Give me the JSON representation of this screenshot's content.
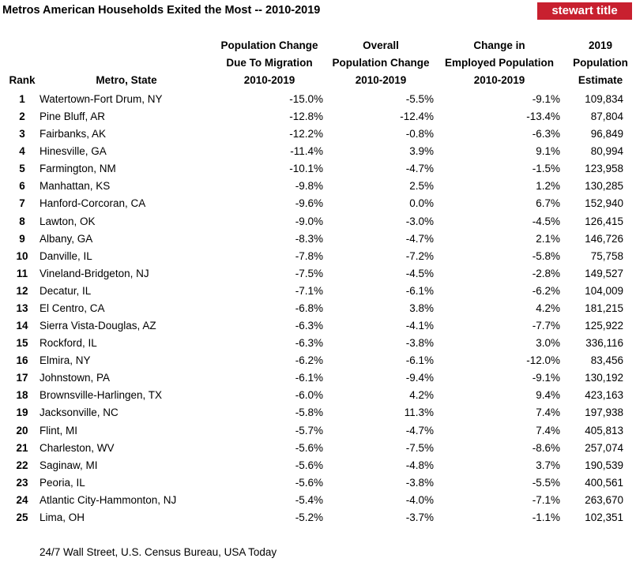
{
  "header": {
    "title": "Metros American Households Exited the Most -- 2010-2019",
    "logo": "stewart title"
  },
  "table": {
    "columns": [
      [
        "Rank"
      ],
      [
        "Metro, State"
      ],
      [
        "Population Change",
        "Due To Migration",
        "2010-2019"
      ],
      [
        "Overall",
        "Population Change",
        "2010-2019"
      ],
      [
        "Change in",
        "Employed Population",
        "2010-2019"
      ],
      [
        "2019",
        "Population",
        "Estimate"
      ]
    ],
    "rows": [
      [
        "1",
        "Watertown-Fort Drum, NY",
        "-15.0%",
        "-5.5%",
        "-9.1%",
        "109,834"
      ],
      [
        "2",
        "Pine Bluff, AR",
        "-12.8%",
        "-12.4%",
        "-13.4%",
        "87,804"
      ],
      [
        "3",
        "Fairbanks, AK",
        "-12.2%",
        "-0.8%",
        "-6.3%",
        "96,849"
      ],
      [
        "4",
        "Hinesville, GA",
        "-11.4%",
        "3.9%",
        "9.1%",
        "80,994"
      ],
      [
        "5",
        "Farmington, NM",
        "-10.1%",
        "-4.7%",
        "-1.5%",
        "123,958"
      ],
      [
        "6",
        "Manhattan, KS",
        "-9.8%",
        "2.5%",
        "1.2%",
        "130,285"
      ],
      [
        "7",
        "Hanford-Corcoran, CA",
        "-9.6%",
        "0.0%",
        "6.7%",
        "152,940"
      ],
      [
        "8",
        "Lawton, OK",
        "-9.0%",
        "-3.0%",
        "-4.5%",
        "126,415"
      ],
      [
        "9",
        "Albany, GA",
        "-8.3%",
        "-4.7%",
        "2.1%",
        "146,726"
      ],
      [
        "10",
        "Danville, IL",
        "-7.8%",
        "-7.2%",
        "-5.8%",
        "75,758"
      ],
      [
        "11",
        "Vineland-Bridgeton, NJ",
        "-7.5%",
        "-4.5%",
        "-2.8%",
        "149,527"
      ],
      [
        "12",
        "Decatur, IL",
        "-7.1%",
        "-6.1%",
        "-6.2%",
        "104,009"
      ],
      [
        "13",
        "El Centro, CA",
        "-6.8%",
        "3.8%",
        "4.2%",
        "181,215"
      ],
      [
        "14",
        "Sierra Vista-Douglas, AZ",
        "-6.3%",
        "-4.1%",
        "-7.7%",
        "125,922"
      ],
      [
        "15",
        "Rockford, IL",
        "-6.3%",
        "-3.8%",
        "3.0%",
        "336,116"
      ],
      [
        "16",
        "Elmira, NY",
        "-6.2%",
        "-6.1%",
        "-12.0%",
        "83,456"
      ],
      [
        "17",
        "Johnstown, PA",
        "-6.1%",
        "-9.4%",
        "-9.1%",
        "130,192"
      ],
      [
        "18",
        "Brownsville-Harlingen, TX",
        "-6.0%",
        "4.2%",
        "9.4%",
        "423,163"
      ],
      [
        "19",
        "Jacksonville, NC",
        "-5.8%",
        "11.3%",
        "7.4%",
        "197,938"
      ],
      [
        "20",
        "Flint, MI",
        "-5.7%",
        "-4.7%",
        "7.4%",
        "405,813"
      ],
      [
        "21",
        "Charleston, WV",
        "-5.6%",
        "-7.5%",
        "-8.6%",
        "257,074"
      ],
      [
        "22",
        "Saginaw, MI",
        "-5.6%",
        "-4.8%",
        "3.7%",
        "190,539"
      ],
      [
        "23",
        "Peoria, IL",
        "-5.6%",
        "-3.8%",
        "-5.5%",
        "400,561"
      ],
      [
        "24",
        "Atlantic City-Hammonton, NJ",
        "-5.4%",
        "-4.0%",
        "-7.1%",
        "263,670"
      ],
      [
        "25",
        "Lima, OH",
        "-5.2%",
        "-3.7%",
        "-1.1%",
        "102,351"
      ]
    ]
  },
  "source": "24/7 Wall Street, U.S. Census Bureau, USA Today"
}
